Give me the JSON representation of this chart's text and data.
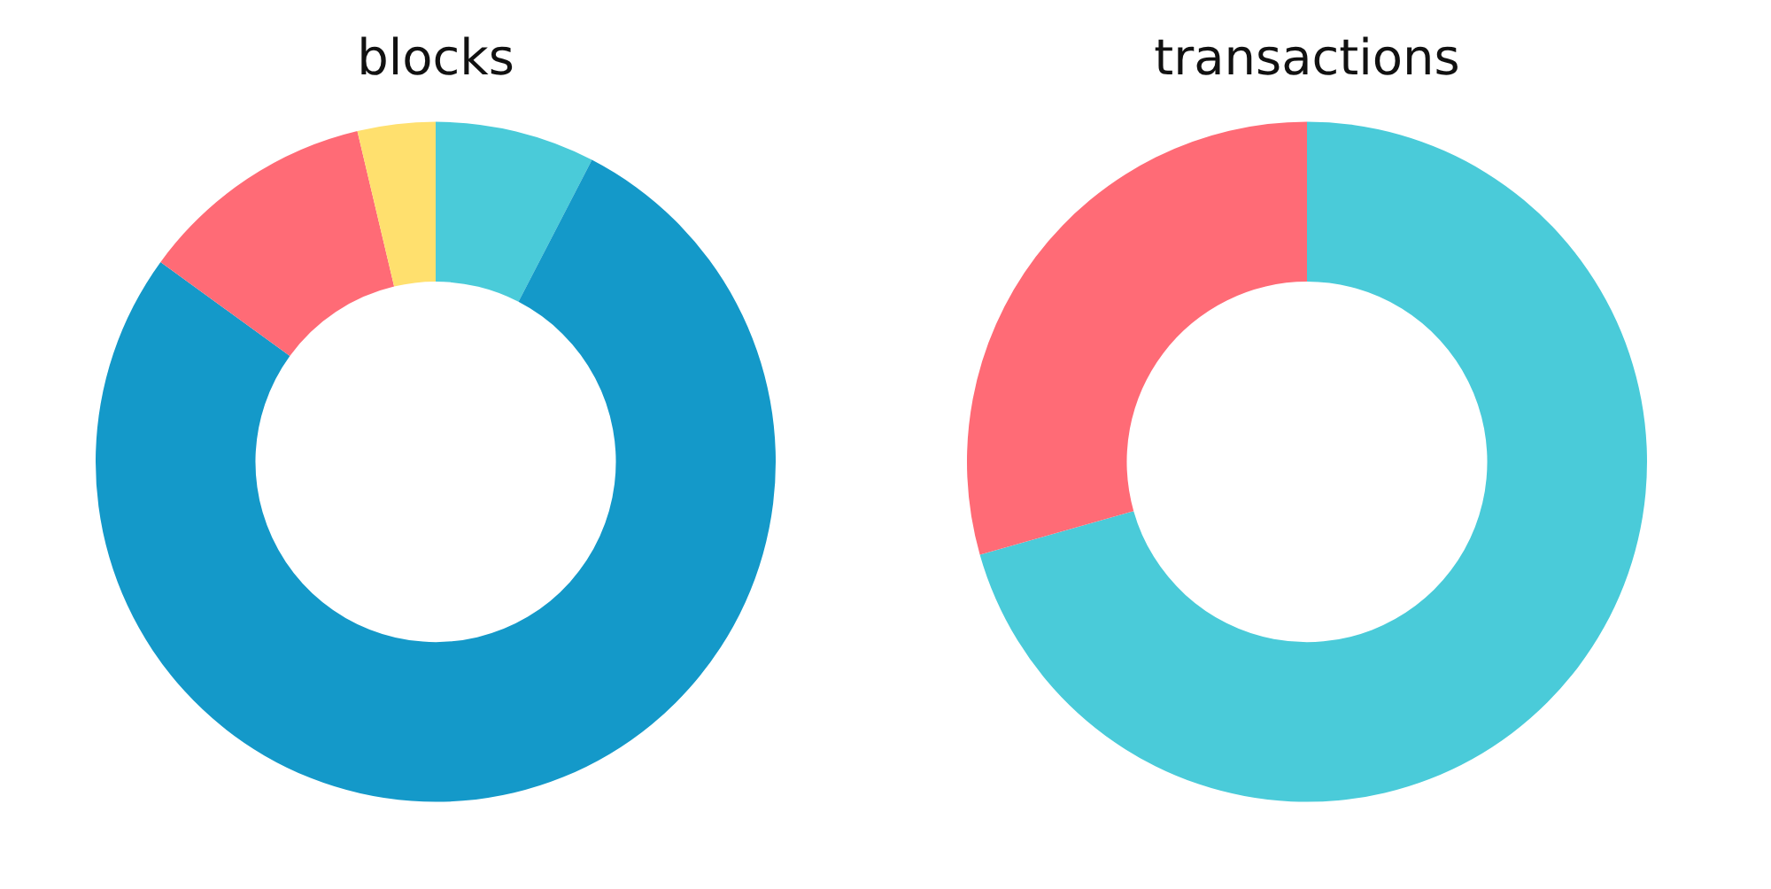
{
  "chart_data": [
    {
      "type": "donut",
      "title": "blocks",
      "categories": [
        null,
        null,
        null,
        null
      ],
      "values": [
        7.6,
        77.4,
        11.3,
        3.7
      ],
      "colors": [
        "#4acbd9",
        "#1499c9",
        "#ff6b76",
        "#ffe06e"
      ]
    },
    {
      "type": "donut",
      "title": "transactions",
      "categories": [
        null,
        null
      ],
      "values": [
        70.6,
        29.4
      ],
      "colors": [
        "#4acbd9",
        "#ff6b76"
      ]
    }
  ]
}
